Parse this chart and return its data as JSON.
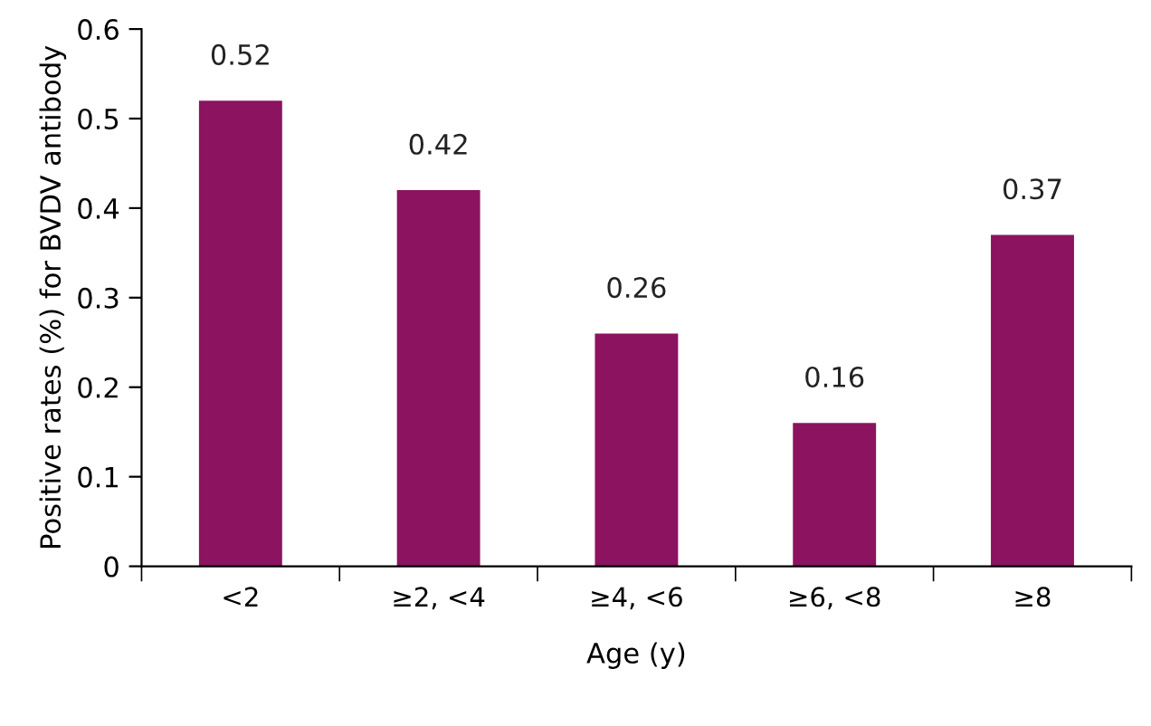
{
  "chart_data": {
    "type": "bar",
    "xlabel": "Age (y)",
    "ylabel": "Positive rates (%) for BVDV antibody",
    "categories": [
      "<2",
      "≥2, <4",
      "≥4, <6",
      "≥6, <8",
      "≥8"
    ],
    "values": [
      0.52,
      0.42,
      0.26,
      0.16,
      0.37
    ],
    "color": "#8b1360",
    "ylim": [
      0,
      0.6
    ],
    "yticks": [
      0,
      0.1,
      0.2,
      0.3,
      0.4,
      0.5,
      0.6
    ],
    "grid": false,
    "data_labels": true
  }
}
